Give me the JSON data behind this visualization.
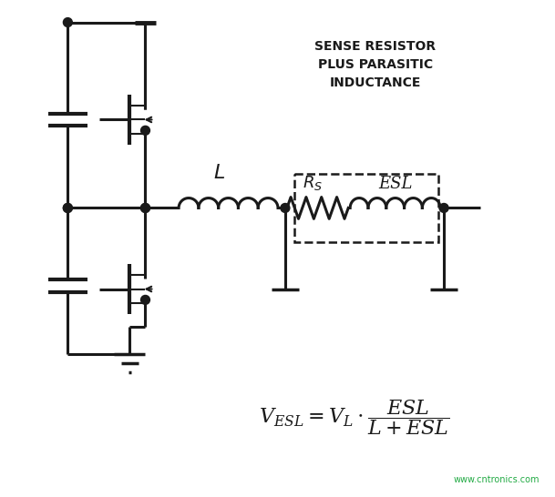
{
  "bg_color": "#ffffff",
  "line_color": "#1a1a1a",
  "title_lines": [
    "SENSE RESISTOR",
    "PLUS PARASITIC",
    "INDUCTANCE"
  ],
  "watermark": "www.cntronics.com"
}
